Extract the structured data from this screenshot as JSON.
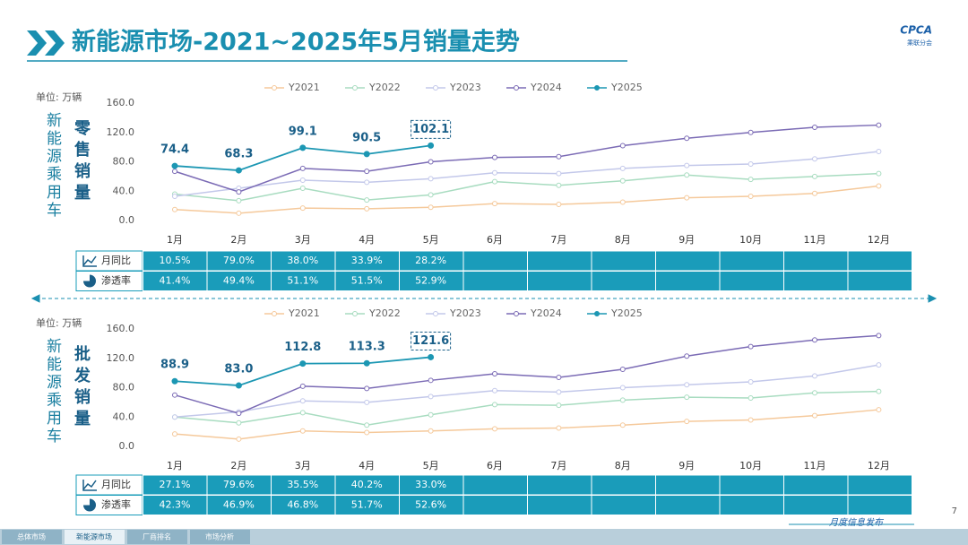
{
  "header": {
    "title": "新能源市场-2021~2025年5月销量走势",
    "logo": "CPCA",
    "logo_sub": "乘联分会"
  },
  "chart_data": [
    {
      "type": "line",
      "unit": "单位: 万辆",
      "group_label": "新能源乘用车",
      "ylabel": "零售销量",
      "categories": [
        "1月",
        "2月",
        "3月",
        "4月",
        "5月",
        "6月",
        "7月",
        "8月",
        "9月",
        "10月",
        "11月",
        "12月"
      ],
      "ylim": [
        0,
        160
      ],
      "yticks": [
        {
          "value": 0,
          "label": "0.0"
        },
        {
          "value": 40,
          "label": "40.0"
        },
        {
          "value": 80,
          "label": "80.0"
        },
        {
          "value": 120,
          "label": "120.0"
        },
        {
          "value": 160,
          "label": "160.0"
        }
      ],
      "grid": false,
      "series": [
        {
          "name": "Y2021",
          "color": "#f5c99b",
          "values": [
            15,
            10,
            17,
            16,
            18,
            23,
            22,
            25,
            31,
            33,
            37,
            47
          ]
        },
        {
          "name": "Y2022",
          "color": "#a8dcc0",
          "values": [
            36,
            27,
            44,
            28,
            35,
            53,
            48,
            54,
            62,
            56,
            60,
            64
          ]
        },
        {
          "name": "Y2023",
          "color": "#c3c8ea",
          "values": [
            33,
            44,
            55,
            52,
            57,
            65,
            64,
            71,
            75,
            77,
            84,
            94
          ]
        },
        {
          "name": "Y2024",
          "color": "#7b6bb5",
          "values": [
            67,
            39,
            71,
            67,
            80,
            86,
            87,
            102,
            112,
            120,
            127,
            130
          ]
        },
        {
          "name": "Y2025",
          "color": "#1c97b3",
          "filled": true,
          "data_labels": true,
          "values": [
            74.4,
            68.3,
            99.1,
            90.5,
            102.1,
            null,
            null,
            null,
            null,
            null,
            null,
            null
          ]
        }
      ]
    },
    {
      "type": "line",
      "unit": "单位: 万辆",
      "group_label": "新能源乘用车",
      "ylabel": "批发销量",
      "categories": [
        "1月",
        "2月",
        "3月",
        "4月",
        "5月",
        "6月",
        "7月",
        "8月",
        "9月",
        "10月",
        "11月",
        "12月"
      ],
      "ylim": [
        0,
        160
      ],
      "yticks": [
        {
          "value": 0,
          "label": "0.0"
        },
        {
          "value": 40,
          "label": "40.0"
        },
        {
          "value": 80,
          "label": "80.0"
        },
        {
          "value": 120,
          "label": "120.0"
        },
        {
          "value": 160,
          "label": "160.0"
        }
      ],
      "grid": false,
      "series": [
        {
          "name": "Y2021",
          "color": "#f5c99b",
          "values": [
            17,
            10,
            21,
            19,
            21,
            24,
            25,
            29,
            34,
            36,
            42,
            50
          ]
        },
        {
          "name": "Y2022",
          "color": "#a8dcc0",
          "values": [
            40,
            32,
            46,
            29,
            43,
            57,
            56,
            63,
            67,
            66,
            73,
            75
          ]
        },
        {
          "name": "Y2023",
          "color": "#c3c8ea",
          "values": [
            40,
            47,
            62,
            60,
            68,
            76,
            74,
            80,
            84,
            88,
            96,
            111
          ]
        },
        {
          "name": "Y2024",
          "color": "#7b6bb5",
          "values": [
            70,
            45,
            82,
            79,
            90,
            99,
            94,
            105,
            123,
            136,
            145,
            151
          ]
        },
        {
          "name": "Y2025",
          "color": "#1c97b3",
          "filled": true,
          "data_labels": true,
          "values": [
            88.9,
            83,
            112.8,
            113.3,
            121.6,
            null,
            null,
            null,
            null,
            null,
            null,
            null
          ],
          "value_labels": [
            "88.9",
            "83.0",
            "112.8",
            "113.3",
            "121.6",
            null,
            null,
            null,
            null,
            null,
            null,
            null
          ]
        }
      ]
    }
  ],
  "tables": [
    {
      "rows": [
        {
          "label": "月同比",
          "values": [
            "10.5%",
            "79.0%",
            "38.0%",
            "33.9%",
            "28.2%"
          ]
        },
        {
          "label": "渗透率",
          "values": [
            "41.4%",
            "49.4%",
            "51.1%",
            "51.5%",
            "52.9%"
          ]
        }
      ]
    },
    {
      "rows": [
        {
          "label": "月同比",
          "values": [
            "27.1%",
            "79.6%",
            "35.5%",
            "40.2%",
            "33.0%"
          ]
        },
        {
          "label": "渗透率",
          "values": [
            "42.3%",
            "46.9%",
            "46.8%",
            "51.7%",
            "52.6%"
          ]
        }
      ]
    }
  ],
  "footer": {
    "tabs": [
      "总体市场",
      "新能源市场",
      "厂商排名",
      "市场分析"
    ],
    "active": 1,
    "tagline": "月度信息发布",
    "page": "7"
  }
}
